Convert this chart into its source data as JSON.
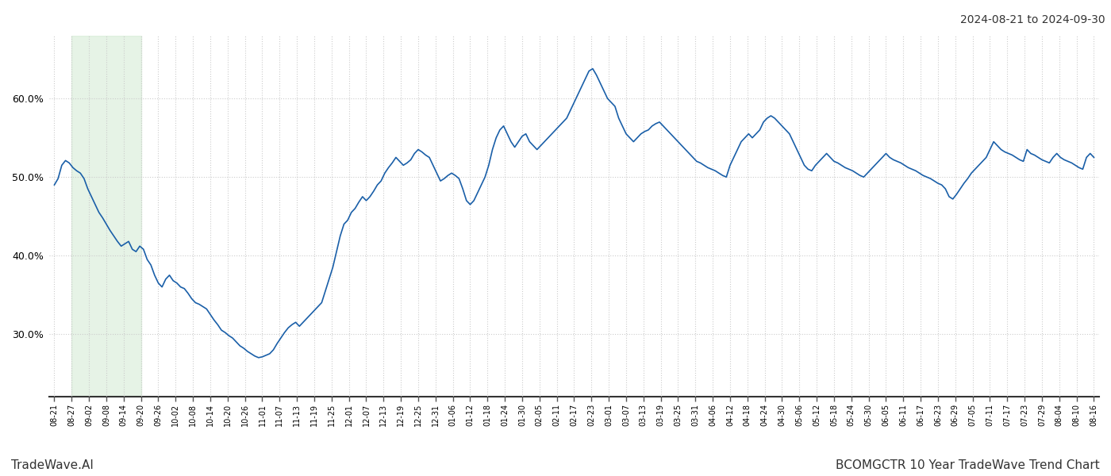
{
  "title_top_right": "2024-08-21 to 2024-09-30",
  "footer_left": "TradeWave.AI",
  "footer_right": "BCOMGCTR 10 Year TradeWave Trend Chart",
  "line_color": "#1a5fa8",
  "line_width": 1.2,
  "background_color": "#ffffff",
  "grid_color": "#cccccc",
  "grid_style": "dotted",
  "shaded_region_color": "#c8e6c9",
  "shaded_region_alpha": 0.45,
  "ylim": [
    22,
    68
  ],
  "yticks": [
    30.0,
    40.0,
    50.0,
    60.0
  ],
  "shaded_label_start": "08-27",
  "shaded_label_end": "09-20",
  "xlabels": [
    "08-21",
    "08-27",
    "09-02",
    "09-08",
    "09-14",
    "09-20",
    "09-26",
    "10-02",
    "10-08",
    "10-14",
    "10-20",
    "10-26",
    "11-01",
    "11-07",
    "11-13",
    "11-19",
    "11-25",
    "12-01",
    "12-07",
    "12-13",
    "12-19",
    "12-25",
    "12-31",
    "01-06",
    "01-12",
    "01-18",
    "01-24",
    "01-30",
    "02-05",
    "02-11",
    "02-17",
    "02-23",
    "03-01",
    "03-07",
    "03-13",
    "03-19",
    "03-25",
    "03-31",
    "04-06",
    "04-12",
    "04-18",
    "04-24",
    "04-30",
    "05-06",
    "05-12",
    "05-18",
    "05-24",
    "05-30",
    "06-05",
    "06-11",
    "06-17",
    "06-23",
    "06-29",
    "07-05",
    "07-11",
    "07-17",
    "07-23",
    "07-29",
    "08-04",
    "08-10",
    "08-16"
  ],
  "values": [
    49.0,
    49.8,
    51.5,
    52.1,
    51.8,
    51.2,
    50.8,
    50.5,
    49.8,
    48.5,
    47.5,
    46.5,
    45.5,
    44.8,
    44.0,
    43.2,
    42.5,
    41.8,
    41.2,
    41.5,
    41.8,
    40.8,
    40.5,
    41.2,
    40.8,
    39.5,
    38.8,
    37.5,
    36.5,
    36.0,
    37.0,
    37.5,
    36.8,
    36.5,
    36.0,
    35.8,
    35.2,
    34.5,
    34.0,
    33.8,
    33.5,
    33.2,
    32.5,
    31.8,
    31.2,
    30.5,
    30.2,
    29.8,
    29.5,
    29.0,
    28.5,
    28.2,
    27.8,
    27.5,
    27.2,
    27.0,
    27.1,
    27.3,
    27.5,
    28.0,
    28.8,
    29.5,
    30.2,
    30.8,
    31.2,
    31.5,
    31.0,
    31.5,
    32.0,
    32.5,
    33.0,
    33.5,
    34.0,
    35.5,
    37.0,
    38.5,
    40.5,
    42.5,
    44.0,
    44.5,
    45.5,
    46.0,
    46.8,
    47.5,
    47.0,
    47.5,
    48.2,
    49.0,
    49.5,
    50.5,
    51.2,
    51.8,
    52.5,
    52.0,
    51.5,
    51.8,
    52.2,
    53.0,
    53.5,
    53.2,
    52.8,
    52.5,
    51.5,
    50.5,
    49.5,
    49.8,
    50.2,
    50.5,
    50.2,
    49.8,
    48.5,
    47.0,
    46.5,
    47.0,
    48.0,
    49.0,
    50.0,
    51.5,
    53.5,
    55.0,
    56.0,
    56.5,
    55.5,
    54.5,
    53.8,
    54.5,
    55.2,
    55.5,
    54.5,
    54.0,
    53.5,
    54.0,
    54.5,
    55.0,
    55.5,
    56.0,
    56.5,
    57.0,
    57.5,
    58.5,
    59.5,
    60.5,
    61.5,
    62.5,
    63.5,
    63.8,
    63.0,
    62.0,
    61.0,
    60.0,
    59.5,
    59.0,
    57.5,
    56.5,
    55.5,
    55.0,
    54.5,
    55.0,
    55.5,
    55.8,
    56.0,
    56.5,
    56.8,
    57.0,
    56.5,
    56.0,
    55.5,
    55.0,
    54.5,
    54.0,
    53.5,
    53.0,
    52.5,
    52.0,
    51.8,
    51.5,
    51.2,
    51.0,
    50.8,
    50.5,
    50.2,
    50.0,
    51.5,
    52.5,
    53.5,
    54.5,
    55.0,
    55.5,
    55.0,
    55.5,
    56.0,
    57.0,
    57.5,
    57.8,
    57.5,
    57.0,
    56.5,
    56.0,
    55.5,
    54.5,
    53.5,
    52.5,
    51.5,
    51.0,
    50.8,
    51.5,
    52.0,
    52.5,
    53.0,
    52.5,
    52.0,
    51.8,
    51.5,
    51.2,
    51.0,
    50.8,
    50.5,
    50.2,
    50.0,
    50.5,
    51.0,
    51.5,
    52.0,
    52.5,
    53.0,
    52.5,
    52.2,
    52.0,
    51.8,
    51.5,
    51.2,
    51.0,
    50.8,
    50.5,
    50.2,
    50.0,
    49.8,
    49.5,
    49.2,
    49.0,
    48.5,
    47.5,
    47.2,
    47.8,
    48.5,
    49.2,
    49.8,
    50.5,
    51.0,
    51.5,
    52.0,
    52.5,
    53.5,
    54.5,
    54.0,
    53.5,
    53.2,
    53.0,
    52.8,
    52.5,
    52.2,
    52.0,
    53.5,
    53.0,
    52.8,
    52.5,
    52.2,
    52.0,
    51.8,
    52.5,
    53.0,
    52.5,
    52.2,
    52.0,
    51.8,
    51.5,
    51.2,
    51.0,
    52.5,
    53.0,
    52.5
  ]
}
